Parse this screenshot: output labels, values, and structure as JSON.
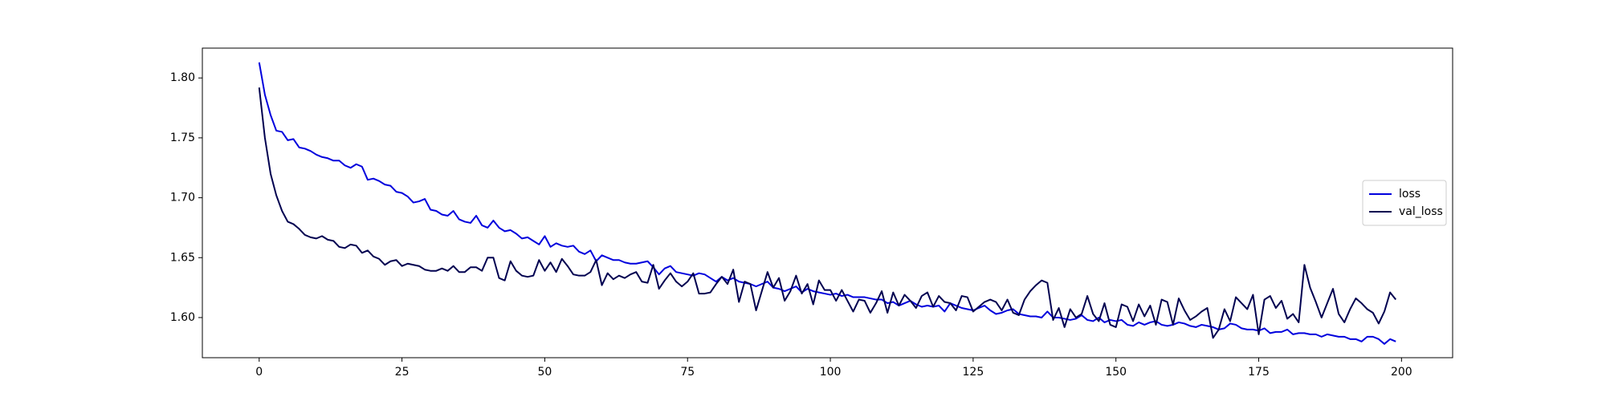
{
  "chart_data": {
    "type": "line",
    "x": [
      0,
      1,
      2,
      3,
      4,
      5,
      6,
      7,
      8,
      9,
      10,
      11,
      12,
      13,
      14,
      15,
      16,
      17,
      18,
      19,
      20,
      21,
      22,
      23,
      24,
      25,
      26,
      27,
      28,
      29,
      30,
      31,
      32,
      33,
      34,
      35,
      36,
      37,
      38,
      39,
      40,
      41,
      42,
      43,
      44,
      45,
      46,
      47,
      48,
      49,
      50,
      51,
      52,
      53,
      54,
      55,
      56,
      57,
      58,
      59,
      60,
      61,
      62,
      63,
      64,
      65,
      66,
      67,
      68,
      69,
      70,
      71,
      72,
      73,
      74,
      75,
      76,
      77,
      78,
      79,
      80,
      81,
      82,
      83,
      84,
      85,
      86,
      87,
      88,
      89,
      90,
      91,
      92,
      93,
      94,
      95,
      96,
      97,
      98,
      99,
      100,
      101,
      102,
      103,
      104,
      105,
      106,
      107,
      108,
      109,
      110,
      111,
      112,
      113,
      114,
      115,
      116,
      117,
      118,
      119,
      120,
      121,
      122,
      123,
      124,
      125,
      126,
      127,
      128,
      129,
      130,
      131,
      132,
      133,
      134,
      135,
      136,
      137,
      138,
      139,
      140,
      141,
      142,
      143,
      144,
      145,
      146,
      147,
      148,
      149,
      150,
      151,
      152,
      153,
      154,
      155,
      156,
      157,
      158,
      159,
      160,
      161,
      162,
      163,
      164,
      165,
      166,
      167,
      168,
      169,
      170,
      171,
      172,
      173,
      174,
      175,
      176,
      177,
      178,
      179,
      180,
      181,
      182,
      183,
      184,
      185,
      186,
      187,
      188,
      189,
      190,
      191,
      192,
      193,
      194,
      195,
      196,
      197,
      198,
      199
    ],
    "series": [
      {
        "name": "loss",
        "color": "#0000dd",
        "values": [
          1.813,
          1.786,
          1.769,
          1.756,
          1.755,
          1.748,
          1.749,
          1.742,
          1.741,
          1.739,
          1.736,
          1.734,
          1.733,
          1.731,
          1.731,
          1.727,
          1.725,
          1.728,
          1.726,
          1.715,
          1.716,
          1.714,
          1.711,
          1.71,
          1.705,
          1.704,
          1.701,
          1.696,
          1.697,
          1.699,
          1.69,
          1.689,
          1.686,
          1.685,
          1.689,
          1.682,
          1.68,
          1.679,
          1.685,
          1.677,
          1.675,
          1.681,
          1.675,
          1.672,
          1.673,
          1.67,
          1.666,
          1.667,
          1.664,
          1.661,
          1.668,
          1.659,
          1.662,
          1.66,
          1.659,
          1.66,
          1.655,
          1.653,
          1.656,
          1.647,
          1.652,
          1.65,
          1.648,
          1.648,
          1.646,
          1.645,
          1.645,
          1.646,
          1.647,
          1.642,
          1.636,
          1.641,
          1.643,
          1.638,
          1.637,
          1.636,
          1.635,
          1.637,
          1.636,
          1.633,
          1.63,
          1.634,
          1.631,
          1.633,
          1.63,
          1.629,
          1.628,
          1.626,
          1.628,
          1.63,
          1.625,
          1.624,
          1.622,
          1.624,
          1.626,
          1.621,
          1.624,
          1.622,
          1.621,
          1.62,
          1.619,
          1.62,
          1.618,
          1.619,
          1.617,
          1.617,
          1.617,
          1.616,
          1.615,
          1.615,
          1.612,
          1.613,
          1.61,
          1.612,
          1.614,
          1.611,
          1.609,
          1.61,
          1.609,
          1.61,
          1.605,
          1.612,
          1.61,
          1.608,
          1.607,
          1.606,
          1.608,
          1.61,
          1.606,
          1.603,
          1.604,
          1.606,
          1.607,
          1.603,
          1.602,
          1.601,
          1.601,
          1.6,
          1.605,
          1.6,
          1.6,
          1.599,
          1.598,
          1.599,
          1.602,
          1.598,
          1.597,
          1.6,
          1.596,
          1.598,
          1.597,
          1.598,
          1.594,
          1.593,
          1.596,
          1.594,
          1.596,
          1.597,
          1.594,
          1.593,
          1.594,
          1.596,
          1.595,
          1.593,
          1.592,
          1.594,
          1.593,
          1.592,
          1.59,
          1.591,
          1.595,
          1.594,
          1.591,
          1.59,
          1.59,
          1.589,
          1.591,
          1.587,
          1.588,
          1.588,
          1.59,
          1.586,
          1.587,
          1.587,
          1.586,
          1.586,
          1.584,
          1.586,
          1.585,
          1.584,
          1.584,
          1.582,
          1.582,
          1.58,
          1.584,
          1.584,
          1.582,
          1.578,
          1.582,
          1.58
        ]
      },
      {
        "name": "val_loss",
        "color": "#000050",
        "values": [
          1.792,
          1.75,
          1.72,
          1.702,
          1.689,
          1.68,
          1.678,
          1.674,
          1.669,
          1.667,
          1.666,
          1.668,
          1.665,
          1.664,
          1.659,
          1.658,
          1.661,
          1.66,
          1.654,
          1.656,
          1.651,
          1.649,
          1.644,
          1.647,
          1.648,
          1.643,
          1.645,
          1.644,
          1.643,
          1.64,
          1.639,
          1.639,
          1.641,
          1.639,
          1.643,
          1.638,
          1.638,
          1.642,
          1.642,
          1.639,
          1.65,
          1.65,
          1.633,
          1.631,
          1.647,
          1.639,
          1.635,
          1.634,
          1.635,
          1.648,
          1.639,
          1.646,
          1.638,
          1.649,
          1.643,
          1.636,
          1.635,
          1.635,
          1.638,
          1.648,
          1.627,
          1.637,
          1.632,
          1.635,
          1.633,
          1.636,
          1.638,
          1.63,
          1.629,
          1.644,
          1.624,
          1.631,
          1.637,
          1.63,
          1.626,
          1.63,
          1.637,
          1.62,
          1.62,
          1.621,
          1.628,
          1.634,
          1.628,
          1.64,
          1.613,
          1.63,
          1.628,
          1.606,
          1.622,
          1.638,
          1.625,
          1.633,
          1.614,
          1.622,
          1.635,
          1.62,
          1.628,
          1.611,
          1.631,
          1.623,
          1.623,
          1.614,
          1.623,
          1.614,
          1.605,
          1.615,
          1.614,
          1.604,
          1.612,
          1.622,
          1.604,
          1.621,
          1.61,
          1.619,
          1.614,
          1.608,
          1.618,
          1.621,
          1.609,
          1.618,
          1.613,
          1.612,
          1.606,
          1.618,
          1.617,
          1.605,
          1.609,
          1.613,
          1.615,
          1.613,
          1.606,
          1.615,
          1.604,
          1.602,
          1.615,
          1.622,
          1.627,
          1.631,
          1.629,
          1.598,
          1.608,
          1.592,
          1.607,
          1.6,
          1.603,
          1.618,
          1.603,
          1.597,
          1.612,
          1.594,
          1.592,
          1.611,
          1.609,
          1.597,
          1.611,
          1.601,
          1.61,
          1.594,
          1.615,
          1.613,
          1.594,
          1.616,
          1.606,
          1.598,
          1.601,
          1.605,
          1.608,
          1.583,
          1.59,
          1.607,
          1.597,
          1.617,
          1.612,
          1.607,
          1.619,
          1.586,
          1.615,
          1.618,
          1.608,
          1.614,
          1.599,
          1.603,
          1.596,
          1.644,
          1.625,
          1.613,
          1.6,
          1.612,
          1.624,
          1.603,
          1.596,
          1.607,
          1.616,
          1.612,
          1.607,
          1.604,
          1.595,
          1.605,
          1.621,
          1.615
        ]
      }
    ],
    "xlim": [
      -9.95,
      208.95
    ],
    "xticks": [
      0,
      25,
      50,
      75,
      100,
      125,
      150,
      175,
      200
    ],
    "ylim": [
      1.5665,
      1.8249
    ],
    "yticks": [
      {
        "value": 1.6,
        "label": "1.60"
      },
      {
        "value": 1.65,
        "label": "1.65"
      },
      {
        "value": 1.7,
        "label": "1.70"
      },
      {
        "value": 1.75,
        "label": "1.75"
      },
      {
        "value": 1.8,
        "label": "1.80"
      }
    ],
    "legend": "center right"
  }
}
